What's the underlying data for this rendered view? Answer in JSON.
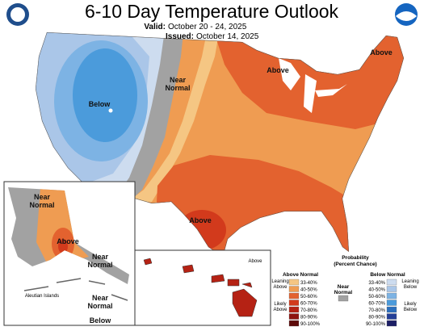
{
  "header": {
    "title": "6-10 Day Temperature Outlook",
    "valid_label": "Valid:",
    "valid_dates": "October 20 - 24, 2025",
    "issued_label": "Issued:",
    "issued_date": "October 14, 2025"
  },
  "map_labels": [
    {
      "lines": [
        "Above"
      ]
    },
    {
      "lines": [
        "Above"
      ]
    },
    {
      "lines": [
        "Near",
        "Normal"
      ]
    },
    {
      "lines": [
        "Below"
      ]
    },
    {
      "lines": [
        "Above"
      ]
    },
    {
      "lines": [
        "Near",
        "Normal"
      ]
    },
    {
      "lines": [
        "Above"
      ]
    },
    {
      "lines": [
        "Near",
        "Normal"
      ]
    },
    {
      "lines": [
        "Aleutian Islands"
      ]
    },
    {
      "lines": [
        "Near",
        "Normal"
      ]
    },
    {
      "lines": [
        "Below"
      ]
    },
    {
      "lines": [
        "Above"
      ]
    }
  ],
  "legend": {
    "title": [
      "Probability",
      "(Percent Chance)"
    ],
    "above_title": "Above Normal",
    "below_title": "Below Normal",
    "above_bins": [
      {
        "label": "33-40%",
        "color": "#f5c683"
      },
      {
        "label": "40-50%",
        "color": "#ef9c52"
      },
      {
        "label": "50-60%",
        "color": "#e3622f"
      },
      {
        "label": "60-70%",
        "color": "#d23a1c"
      },
      {
        "label": "70-80%",
        "color": "#b52214"
      },
      {
        "label": "80-90%",
        "color": "#8e1410"
      },
      {
        "label": "90-100%",
        "color": "#5e0b0a"
      }
    ],
    "below_bins": [
      {
        "label": "33-40%",
        "color": "#cddcef"
      },
      {
        "label": "40-50%",
        "color": "#aac6e8"
      },
      {
        "label": "50-60%",
        "color": "#7db3e4"
      },
      {
        "label": "60-70%",
        "color": "#4b9bdb"
      },
      {
        "label": "70-80%",
        "color": "#2b6fbd"
      },
      {
        "label": "80-90%",
        "color": "#243f97"
      },
      {
        "label": "90-100%",
        "color": "#1d1f66"
      }
    ],
    "near_normal": {
      "lines": [
        "Near",
        "Normal"
      ],
      "color": "#a2a2a2"
    },
    "leaning_above": [
      "Leaning",
      "Above"
    ],
    "likely_above": [
      "Likely",
      "Above"
    ],
    "leaning_below": [
      "Leaning",
      "Below"
    ],
    "likely_below": [
      "Likely",
      "Below"
    ]
  }
}
